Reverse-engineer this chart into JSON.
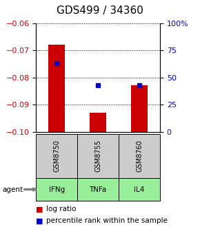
{
  "title": "GDS499 / 34360",
  "samples": [
    "GSM8750",
    "GSM8755",
    "GSM8760"
  ],
  "agents": [
    "IFNg",
    "TNFa",
    "IL4"
  ],
  "log_ratios": [
    -0.068,
    -0.093,
    -0.083
  ],
  "percentiles": [
    63,
    43,
    43
  ],
  "ylim_left": [
    -0.1,
    -0.06
  ],
  "ylim_right": [
    0,
    100
  ],
  "yticks_left": [
    -0.1,
    -0.09,
    -0.08,
    -0.07,
    -0.06
  ],
  "yticks_right": [
    0,
    25,
    50,
    75,
    100
  ],
  "bar_color": "#cc0000",
  "dot_color": "#0000cc",
  "gray_box_color": "#cccccc",
  "green_box_color": "#99ee99",
  "bar_width": 0.4,
  "title_fontsize": 11,
  "tick_fontsize": 8,
  "label_fontsize": 8,
  "legend_fontsize": 7.5
}
